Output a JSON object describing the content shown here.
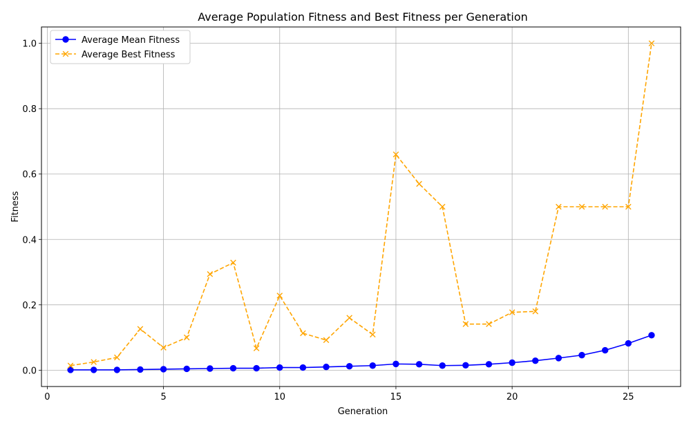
{
  "chart_data": {
    "type": "line",
    "title": "Average Population Fitness and Best Fitness per Generation",
    "xlabel": "Generation",
    "ylabel": "Fitness",
    "xlim": [
      -0.25,
      27.25
    ],
    "ylim": [
      -0.05,
      1.05
    ],
    "xticks": [
      0,
      5,
      10,
      15,
      20,
      25
    ],
    "yticks": [
      0.0,
      0.2,
      0.4,
      0.6,
      0.8,
      1.0
    ],
    "xtick_labels": [
      "0",
      "5",
      "10",
      "15",
      "20",
      "25"
    ],
    "ytick_labels": [
      "0.0",
      "0.2",
      "0.4",
      "0.6",
      "0.8",
      "1.0"
    ],
    "grid": true,
    "legend_position": "top-left",
    "x": [
      1,
      2,
      3,
      4,
      5,
      6,
      7,
      8,
      9,
      10,
      11,
      12,
      13,
      14,
      15,
      16,
      17,
      18,
      19,
      20,
      21,
      22,
      23,
      24,
      25,
      26
    ],
    "series": [
      {
        "name": "Average Mean Fitness",
        "color": "#0000ff",
        "line_style": "solid",
        "marker": "circle",
        "values": [
          0.001,
          0.001,
          0.001,
          0.002,
          0.003,
          0.004,
          0.005,
          0.006,
          0.006,
          0.008,
          0.008,
          0.01,
          0.012,
          0.014,
          0.019,
          0.018,
          0.014,
          0.015,
          0.018,
          0.023,
          0.029,
          0.037,
          0.046,
          0.061,
          0.082,
          0.107
        ]
      },
      {
        "name": "Average Best Fitness",
        "color": "#ffa500",
        "line_style": "dashed",
        "marker": "x",
        "values": [
          0.014,
          0.025,
          0.039,
          0.126,
          0.069,
          0.1,
          0.294,
          0.329,
          0.067,
          0.228,
          0.113,
          0.092,
          0.16,
          0.109,
          0.66,
          0.57,
          0.5,
          0.141,
          0.141,
          0.177,
          0.18,
          0.5,
          0.5,
          0.5,
          0.5,
          1.0
        ]
      }
    ]
  }
}
